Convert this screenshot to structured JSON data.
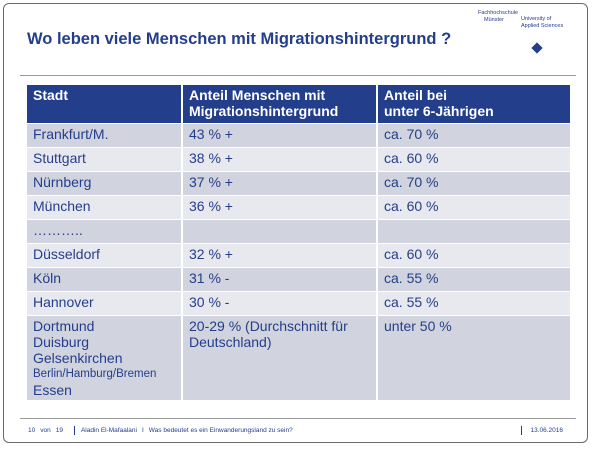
{
  "header": {
    "title": "Wo leben viele Menschen mit Migrationshintergrund ?",
    "logo": [
      "Fachhochschule",
      "Münster",
      "University of",
      "Applied Sciences"
    ]
  },
  "table": {
    "columns": [
      [
        "Stadt"
      ],
      [
        "Anteil Menschen mit",
        "Migrationshintergrund"
      ],
      [
        "Anteil bei",
        "unter 6-Jährigen"
      ]
    ],
    "rows": [
      [
        "Frankfurt/M.",
        "43 % +",
        "ca. 70 %"
      ],
      [
        "Stuttgart",
        "38 % +",
        "ca. 60 %"
      ],
      [
        "Nürnberg",
        "37 % +",
        "ca. 70 %"
      ],
      [
        "München",
        "36 % +",
        "ca. 60 %"
      ],
      [
        "……….."
      ],
      [
        "Düsseldorf",
        "32 % +",
        "ca. 60 %"
      ],
      [
        "Köln",
        "31 % -",
        "ca. 55 %"
      ],
      [
        "Hannover",
        "30 % -",
        "ca. 55 %"
      ],
      [
        [
          "Dortmund",
          "Duisburg",
          "Gelsenkirchen",
          "Berlin/Hamburg/Bremen",
          "Essen"
        ],
        "20-29 % (Durchschnitt für Deutschland)",
        "unter 50 %"
      ]
    ]
  },
  "footer": {
    "page": "10",
    "of": "von",
    "total": "19",
    "author": "Aladin El-Mafaalani",
    "sep": "I",
    "talk": "Was bedeutet es ein Einwanderungsland zu sein?",
    "date": "13.06.2016"
  }
}
